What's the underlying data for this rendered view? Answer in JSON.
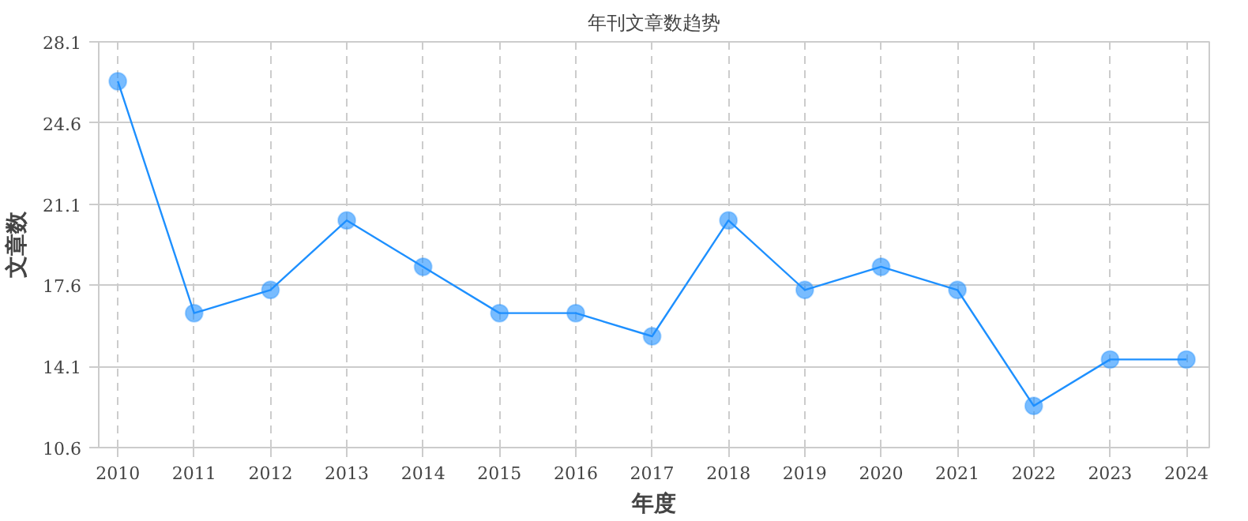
{
  "chart_data": {
    "type": "line",
    "title": "年刊文章数趋势",
    "xlabel": "年度",
    "ylabel": "文章数",
    "x": [
      2010,
      2011,
      2012,
      2013,
      2014,
      2015,
      2016,
      2017,
      2018,
      2019,
      2020,
      2021,
      2022,
      2023,
      2024
    ],
    "series": [
      {
        "color": "#1e90ff",
        "values": [
          26.4,
          16.4,
          17.4,
          20.4,
          18.4,
          16.4,
          16.4,
          15.4,
          20.4,
          17.4,
          18.4,
          17.4,
          12.4,
          14.4,
          14.4
        ]
      }
    ],
    "xlim": [
      2009.75,
      2024.3
    ],
    "xticks": [
      2010,
      2011,
      2012,
      2013,
      2014,
      2015,
      2016,
      2017,
      2018,
      2019,
      2020,
      2021,
      2022,
      2023,
      2024
    ],
    "ylim": [
      10.6,
      28.1
    ],
    "yticks": [
      10.6,
      14.1,
      17.6,
      21.1,
      24.6,
      28.1
    ],
    "grid": true,
    "marker": "circle",
    "line_style": "solid"
  }
}
